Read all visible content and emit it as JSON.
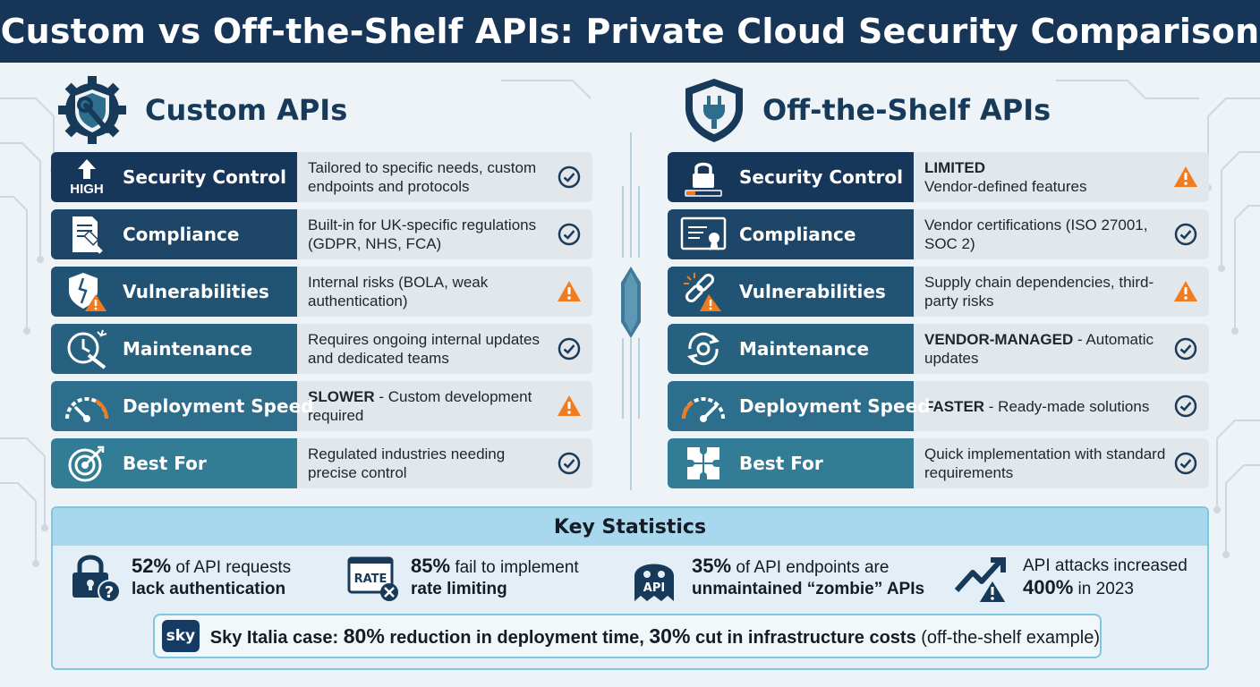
{
  "title": "Custom vs Off-the-Shelf APIs: Private Cloud Security Comparison",
  "left": {
    "heading": "Custom APIs",
    "rows": [
      {
        "label": "Security Control",
        "badge": "HIGH",
        "lead": "",
        "text": "Tailored to specific needs, custom endpoints and protocols",
        "status": "check"
      },
      {
        "label": "Compliance",
        "lead": "",
        "text": "Built-in for UK-specific regulations (GDPR, NHS, FCA)",
        "status": "check"
      },
      {
        "label": "Vulnerabilities",
        "lead": "",
        "text": "Internal risks (BOLA, weak authentication)",
        "status": "warning"
      },
      {
        "label": "Maintenance",
        "lead": "",
        "text": "Requires ongoing internal updates and dedicated teams",
        "status": "check"
      },
      {
        "label": "Deployment Speed",
        "lead": "SLOWER",
        "text": " - Custom development required",
        "status": "warning"
      },
      {
        "label": "Best For",
        "lead": "",
        "text": "Regulated industries needing precise control",
        "status": "check"
      }
    ]
  },
  "right": {
    "heading": "Off-the-Shelf APIs",
    "rows": [
      {
        "label": "Security Control",
        "lead": "LIMITED",
        "text": "Vendor-defined features",
        "status": "warning"
      },
      {
        "label": "Compliance",
        "lead": "",
        "text": "Vendor certifications (ISO 27001, SOC 2)",
        "status": "check"
      },
      {
        "label": "Vulnerabilities",
        "lead": "",
        "text": "Supply chain dependencies, third-party risks",
        "status": "warning"
      },
      {
        "label": "Maintenance",
        "lead": "VENDOR-MANAGED",
        "text": " - Automatic updates",
        "status": "check"
      },
      {
        "label": "Deployment Speed",
        "lead": "FASTER",
        "text": " - Ready-made solutions",
        "status": "check"
      },
      {
        "label": "Best For",
        "lead": "",
        "text": "Quick implementation with standard requirements",
        "status": "check"
      }
    ]
  },
  "stats": {
    "heading": "Key Statistics",
    "items": [
      {
        "big": "52%",
        "rest": " of API requests",
        "line2": "lack authentication"
      },
      {
        "big": "85%",
        "rest": " fail to implement",
        "line2": "rate limiting",
        "icon_label": "RATE"
      },
      {
        "big": "35%",
        "rest": " of API endpoints are",
        "line2": "unmaintained “zombie” APIs",
        "icon_label": "API"
      },
      {
        "pre": "API attacks increased",
        "big": "400%",
        "rest": " in 2023"
      }
    ],
    "case": {
      "logo": "sky",
      "p1": "Sky Italia case: ",
      "n1": "80%",
      "p2": " reduction in deployment time, ",
      "n2": "30%",
      "p3": " cut in infrastructure costs",
      "p4": " (off-the-shelf example)"
    }
  },
  "colors": {
    "header": "#173556",
    "check": "#1c3a5a",
    "warning": "#f07c1f"
  }
}
